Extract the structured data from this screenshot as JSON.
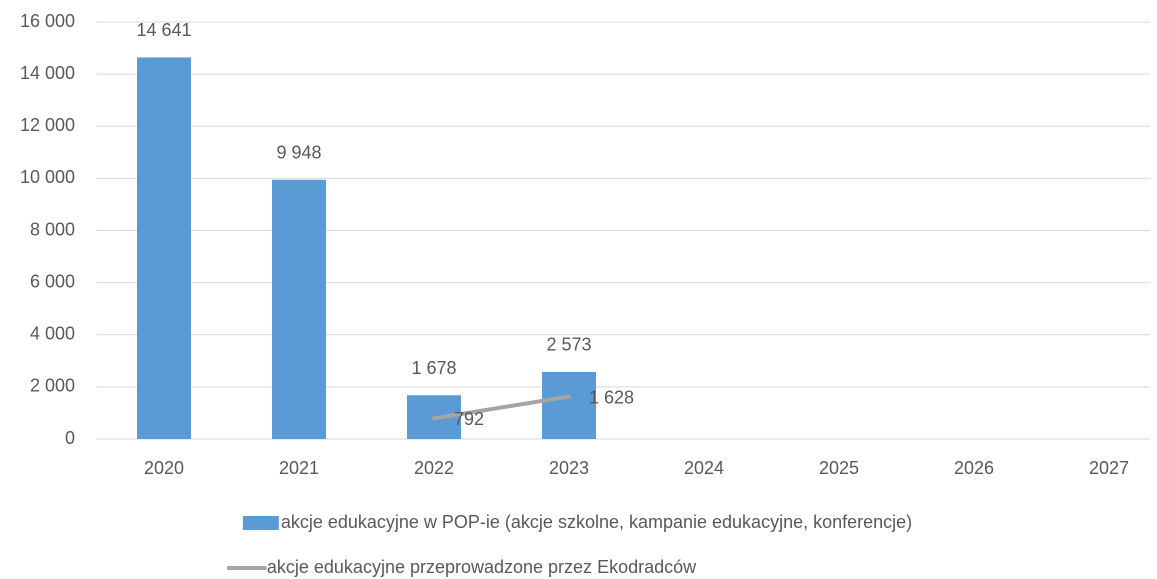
{
  "chart_data": {
    "type": "bar",
    "categories": [
      "2020",
      "2021",
      "2022",
      "2023",
      "2024",
      "2025",
      "2026",
      "2027"
    ],
    "series": [
      {
        "name": "akcje edukacyjne w POP-ie (akcje szkolne, kampanie edukacyjne, konferencje)",
        "type": "bar",
        "color": "#5b9bd5",
        "values": [
          14641,
          9948,
          1678,
          2573,
          null,
          null,
          null,
          null
        ],
        "value_labels": [
          "14 641",
          "9 948",
          "1 678",
          "2 573",
          null,
          null,
          null,
          null
        ]
      },
      {
        "name": "akcje edukacyjne przeprowadzone przez Ekodradców",
        "type": "line",
        "color": "#a5a5a5",
        "values": [
          null,
          null,
          792,
          1628,
          null,
          null,
          null,
          null
        ],
        "value_labels": [
          null,
          null,
          "792",
          "1 628",
          null,
          null,
          null,
          null
        ]
      }
    ],
    "ylim": [
      0,
      16000
    ],
    "yticks": [
      0,
      {
        "value": 2000,
        "label": "2 000"
      },
      {
        "value": 4000,
        "label": "4 000"
      },
      {
        "value": 6000,
        "label": "6 000"
      },
      {
        "value": 8000,
        "label": "8 000"
      },
      {
        "value": 10000,
        "label": "10 000"
      },
      {
        "value": 12000,
        "label": "12 000"
      },
      {
        "value": 14000,
        "label": "14 000"
      },
      {
        "value": 16000,
        "label": "16 000"
      }
    ],
    "grid": true,
    "legend": "bottom"
  }
}
